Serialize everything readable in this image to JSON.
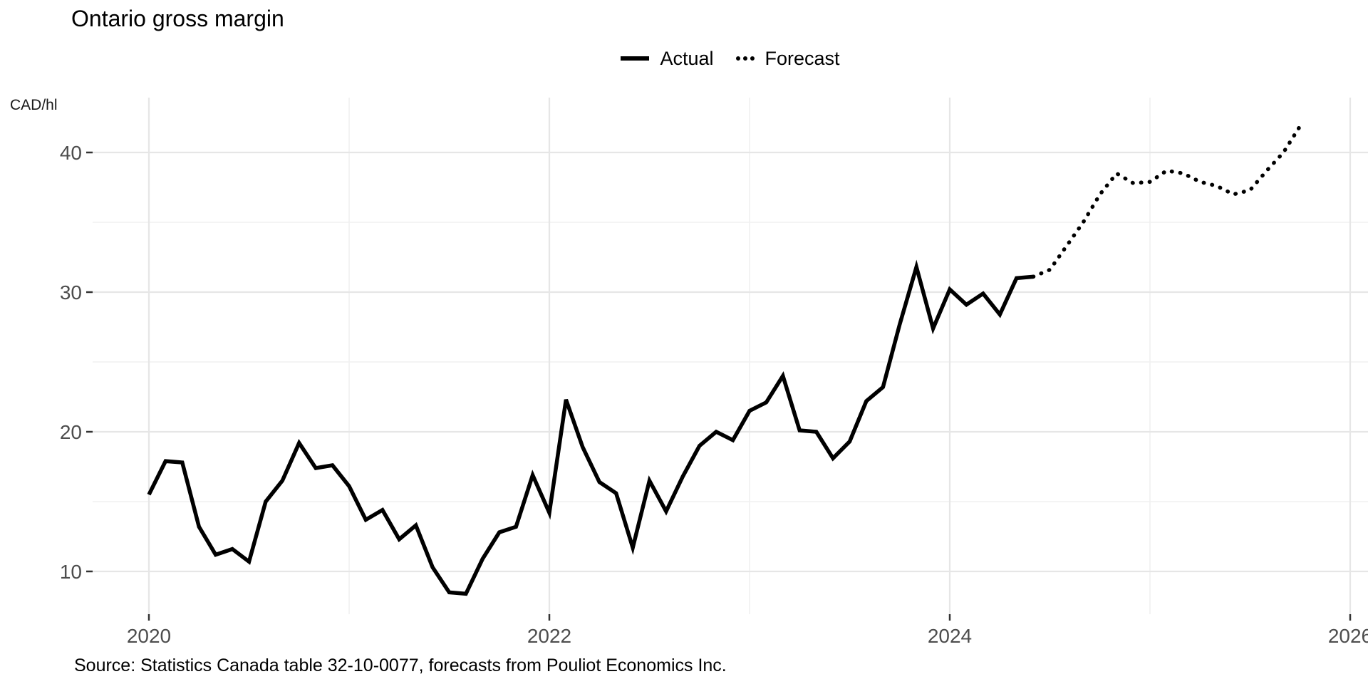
{
  "title": "Ontario gross margin",
  "y_unit_label": "CAD/hl",
  "legend": {
    "actual": "Actual",
    "forecast": "Forecast"
  },
  "source_note": "Source: Statistics Canada table 32-10-0077, forecasts from Pouliot Economics Inc.",
  "colors": {
    "line": "#000000",
    "axis_text": "#4d4d4d",
    "tick_mark": "#333333",
    "grid_major": "#e6e6e6",
    "grid_minor": "#f0f0f0",
    "background": "#ffffff"
  },
  "chart_data": {
    "type": "line",
    "title": "Ontario gross margin",
    "ylabel": "CAD/hl",
    "xlabel": "",
    "legend_position": "top-center",
    "grid": true,
    "x_tick_labels": [
      "2020",
      "2022",
      "2024",
      "2026"
    ],
    "x_tick_years": [
      2020,
      2022,
      2024,
      2026
    ],
    "x_minor_years": [
      2021,
      2023,
      2025
    ],
    "y_ticks": [
      10,
      20,
      30,
      40
    ],
    "y_minor_ticks": [
      15,
      25,
      35
    ],
    "ylim": [
      6.9,
      43.9
    ],
    "xlim_years": [
      2019.72,
      2026.09
    ],
    "series": [
      {
        "name": "Actual",
        "linetype": "solid",
        "points": [
          [
            "2020-01",
            15.5
          ],
          [
            "2020-02",
            17.9
          ],
          [
            "2020-03",
            17.8
          ],
          [
            "2020-04",
            13.2
          ],
          [
            "2020-05",
            11.2
          ],
          [
            "2020-06",
            11.6
          ],
          [
            "2020-07",
            10.7
          ],
          [
            "2020-08",
            15.0
          ],
          [
            "2020-09",
            16.5
          ],
          [
            "2020-10",
            19.2
          ],
          [
            "2020-11",
            17.4
          ],
          [
            "2020-12",
            17.6
          ],
          [
            "2021-01",
            16.1
          ],
          [
            "2021-02",
            13.7
          ],
          [
            "2021-03",
            14.4
          ],
          [
            "2021-04",
            12.3
          ],
          [
            "2021-05",
            13.3
          ],
          [
            "2021-06",
            10.3
          ],
          [
            "2021-07",
            8.5
          ],
          [
            "2021-08",
            8.4
          ],
          [
            "2021-09",
            10.9
          ],
          [
            "2021-10",
            12.8
          ],
          [
            "2021-11",
            13.2
          ],
          [
            "2021-12",
            16.9
          ],
          [
            "2022-01",
            14.2
          ],
          [
            "2022-02",
            22.3
          ],
          [
            "2022-03",
            18.9
          ],
          [
            "2022-04",
            16.4
          ],
          [
            "2022-05",
            15.6
          ],
          [
            "2022-06",
            11.7
          ],
          [
            "2022-07",
            16.5
          ],
          [
            "2022-08",
            14.3
          ],
          [
            "2022-09",
            16.8
          ],
          [
            "2022-10",
            19.0
          ],
          [
            "2022-11",
            20.0
          ],
          [
            "2022-12",
            19.4
          ],
          [
            "2023-01",
            21.5
          ],
          [
            "2023-02",
            22.1
          ],
          [
            "2023-03",
            24.0
          ],
          [
            "2023-04",
            20.1
          ],
          [
            "2023-05",
            20.0
          ],
          [
            "2023-06",
            18.1
          ],
          [
            "2023-07",
            19.3
          ],
          [
            "2023-08",
            22.2
          ],
          [
            "2023-09",
            23.2
          ],
          [
            "2023-10",
            27.7
          ],
          [
            "2023-11",
            31.8
          ],
          [
            "2023-12",
            27.4
          ],
          [
            "2024-01",
            30.2
          ],
          [
            "2024-02",
            29.1
          ],
          [
            "2024-03",
            29.9
          ],
          [
            "2024-04",
            28.4
          ],
          [
            "2024-05",
            31.0
          ],
          [
            "2024-06",
            31.1
          ]
        ]
      },
      {
        "name": "Forecast",
        "linetype": "dotted",
        "points": [
          [
            "2024-06",
            31.1
          ],
          [
            "2024-07",
            31.6
          ],
          [
            "2024-08",
            33.3
          ],
          [
            "2024-09",
            35.0
          ],
          [
            "2024-10",
            37.0
          ],
          [
            "2024-11",
            38.5
          ],
          [
            "2024-12",
            37.8
          ],
          [
            "2025-01",
            37.9
          ],
          [
            "2025-02",
            38.7
          ],
          [
            "2025-03",
            38.5
          ],
          [
            "2025-04",
            37.9
          ],
          [
            "2025-05",
            37.6
          ],
          [
            "2025-06",
            37.0
          ],
          [
            "2025-07",
            37.3
          ],
          [
            "2025-08",
            38.7
          ],
          [
            "2025-09",
            40.0
          ],
          [
            "2025-10",
            41.9
          ]
        ]
      }
    ]
  }
}
